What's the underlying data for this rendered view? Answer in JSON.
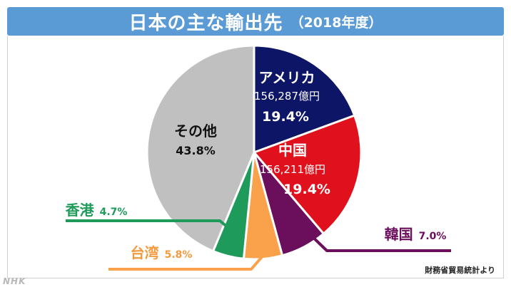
{
  "header": {
    "title": "日本の主な輸出先",
    "subtitle": "（2018年度）"
  },
  "chart_data": {
    "type": "pie",
    "unit": "億円",
    "slices": [
      {
        "label": "アメリカ",
        "amount": "156,287億円",
        "percent": 19.4,
        "percent_label": "19.4%",
        "color": "#0d1566",
        "text_color": "#ffffff"
      },
      {
        "label": "中国",
        "amount": "156,211億円",
        "percent": 19.4,
        "percent_label": "19.4%",
        "color": "#e0101c",
        "text_color": "#ffffff"
      },
      {
        "label": "韓国",
        "percent": 7.0,
        "percent_label": "7.0%",
        "color": "#6b0e5b",
        "text_color": "#6b0e5b"
      },
      {
        "label": "台湾",
        "percent": 5.8,
        "percent_label": "5.8%",
        "color": "#f9a24b",
        "text_color": "#f39a3d"
      },
      {
        "label": "香港",
        "percent": 4.7,
        "percent_label": "4.7%",
        "color": "#1e9a5a",
        "text_color": "#1e9a5a"
      },
      {
        "label": "その他",
        "percent": 43.8,
        "percent_label": "43.8%",
        "color": "#c0c0c0",
        "text_color": "#111111"
      }
    ]
  },
  "source": "財務省貿易統計より",
  "logo": "NHK"
}
